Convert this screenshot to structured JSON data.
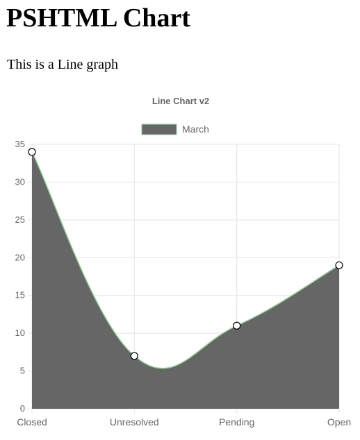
{
  "page": {
    "title": "PSHTML Chart",
    "subtitle": "This is a Line graph"
  },
  "chart_data": {
    "type": "area",
    "title": "Line Chart v2",
    "categories": [
      "Closed",
      "Unresolved",
      "Pending",
      "Open"
    ],
    "series": [
      {
        "name": "March",
        "values": [
          34,
          7,
          11,
          19
        ],
        "fill_color": "#666666",
        "line_color": "#8fd18f"
      }
    ],
    "ylim": [
      0,
      35
    ],
    "yticks": [
      0,
      5,
      10,
      15,
      20,
      25,
      30,
      35
    ],
    "grid": true,
    "legend": "top",
    "curve": "smooth",
    "colors": {
      "grid": "#e5e5e5",
      "tick_text": "#666666",
      "title_text": "#666666",
      "point_fill": "#ffffff",
      "point_stroke": "#000000"
    }
  }
}
